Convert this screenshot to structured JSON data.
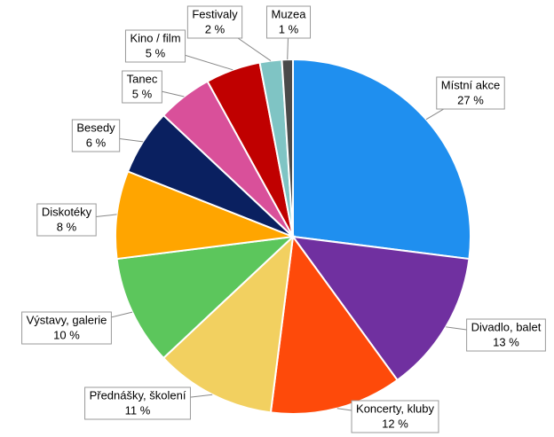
{
  "chart_data": {
    "type": "pie",
    "categories": [
      "Místní akce",
      "Divadlo, balet",
      "Koncerty, kluby",
      "Přednášky, školení",
      "Výstavy, galerie",
      "Diskotéky",
      "Besedy",
      "Tanec",
      "Kino / film",
      "Festivaly",
      "Muzea"
    ],
    "values": [
      27,
      13,
      12,
      11,
      10,
      8,
      6,
      5,
      5,
      2,
      1
    ],
    "value_labels": [
      "27 %",
      "13 %",
      "12 %",
      "11 %",
      "10 %",
      "8 %",
      "6 %",
      "5 %",
      "5 %",
      "2 %",
      "1 %"
    ],
    "colors": [
      "#1f8fef",
      "#7030a0",
      "#fe4a0a",
      "#f2d060",
      "#5cc65c",
      "#ffa500",
      "#0a2060",
      "#d9509a",
      "#c00000",
      "#7fc4c4",
      "#4a4a4a"
    ]
  }
}
